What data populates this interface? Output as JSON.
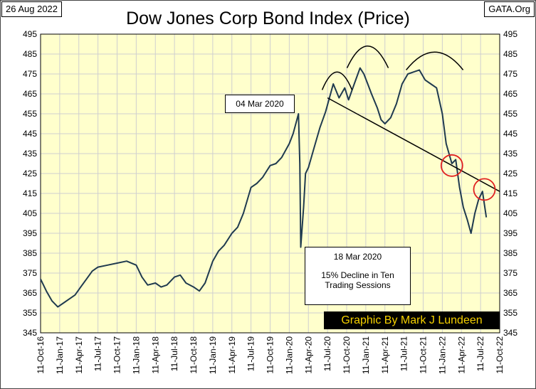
{
  "header": {
    "date": "26 Aug 2022",
    "site": "GATA.Org"
  },
  "annotations": {
    "peak_date": "04 Mar 2020",
    "crash_date": "18 Mar 2020",
    "crash_note_line1": "15% Decline in Ten",
    "crash_note_line2": "Trading Sessions",
    "credit": "Graphic By Mark J Lundeen"
  },
  "colors": {
    "plot_background": "#ffffcc",
    "series_line": "#1f3a4f",
    "trend_line": "#000000",
    "circles": "#e02020",
    "credit_background": "#000000",
    "credit_text": "#f5d000"
  },
  "chart_data": {
    "type": "line",
    "title": "Dow Jones Corp Bond Index (Price)",
    "xlabel": "",
    "ylabel": "",
    "ylim": [
      345,
      495
    ],
    "yticks": [
      345,
      355,
      365,
      375,
      385,
      395,
      405,
      415,
      425,
      435,
      445,
      455,
      465,
      475,
      485,
      495
    ],
    "xticks": [
      "11-Oct-16",
      "11-Jan-17",
      "11-Apr-17",
      "11-Jul-17",
      "11-Oct-17",
      "11-Jan-18",
      "11-Apr-18",
      "11-Jul-18",
      "11-Oct-18",
      "11-Jan-19",
      "11-Apr-19",
      "11-Jul-19",
      "11-Oct-19",
      "11-Jan-20",
      "11-Apr-20",
      "11-Jul-20",
      "11-Oct-20",
      "11-Jan-21",
      "11-Apr-21",
      "11-Jul-21",
      "11-Oct-21",
      "11-Jan-22",
      "11-Apr-22",
      "11-Jul-22",
      "11-Oct-22"
    ],
    "grid": true,
    "series": [
      {
        "values": [
          [
            0,
            372
          ],
          [
            0.3,
            366
          ],
          [
            0.6,
            361
          ],
          [
            0.9,
            358
          ],
          [
            1.2,
            360
          ],
          [
            1.5,
            362
          ],
          [
            1.8,
            364
          ],
          [
            2.1,
            368
          ],
          [
            2.4,
            372
          ],
          [
            2.7,
            376
          ],
          [
            3.0,
            378
          ],
          [
            3.5,
            379
          ],
          [
            4.0,
            380
          ],
          [
            4.5,
            381
          ],
          [
            5.0,
            379
          ],
          [
            5.3,
            373
          ],
          [
            5.6,
            369
          ],
          [
            6.0,
            370
          ],
          [
            6.3,
            368
          ],
          [
            6.6,
            369
          ],
          [
            7.0,
            373
          ],
          [
            7.3,
            374
          ],
          [
            7.6,
            370
          ],
          [
            8.0,
            368
          ],
          [
            8.3,
            366
          ],
          [
            8.6,
            370
          ],
          [
            9.0,
            381
          ],
          [
            9.3,
            386
          ],
          [
            9.6,
            389
          ],
          [
            10.0,
            395
          ],
          [
            10.3,
            398
          ],
          [
            10.6,
            405
          ],
          [
            11.0,
            418
          ],
          [
            11.3,
            420
          ],
          [
            11.6,
            423
          ],
          [
            12.0,
            429
          ],
          [
            12.3,
            430
          ],
          [
            12.6,
            433
          ],
          [
            13.0,
            440
          ],
          [
            13.2,
            445
          ],
          [
            13.4,
            452
          ],
          [
            13.48,
            455
          ],
          [
            13.55,
            430
          ],
          [
            13.6,
            388
          ],
          [
            13.75,
            408
          ],
          [
            13.85,
            425
          ],
          [
            14.0,
            428
          ],
          [
            14.3,
            438
          ],
          [
            14.6,
            448
          ],
          [
            14.9,
            456
          ],
          [
            15.1,
            463
          ],
          [
            15.3,
            470
          ],
          [
            15.6,
            463
          ],
          [
            15.9,
            468
          ],
          [
            16.1,
            462
          ],
          [
            16.4,
            470
          ],
          [
            16.7,
            478
          ],
          [
            16.9,
            475
          ],
          [
            17.1,
            470
          ],
          [
            17.3,
            465
          ],
          [
            17.6,
            458
          ],
          [
            17.8,
            452
          ],
          [
            18.0,
            450
          ],
          [
            18.3,
            453
          ],
          [
            18.6,
            460
          ],
          [
            18.9,
            470
          ],
          [
            19.2,
            475
          ],
          [
            19.5,
            476
          ],
          [
            19.8,
            477
          ],
          [
            20.1,
            472
          ],
          [
            20.4,
            470
          ],
          [
            20.7,
            468
          ],
          [
            21.0,
            455
          ],
          [
            21.2,
            440
          ],
          [
            21.5,
            430
          ],
          [
            21.7,
            432
          ],
          [
            21.9,
            418
          ],
          [
            22.1,
            408
          ],
          [
            22.3,
            402
          ],
          [
            22.5,
            395
          ],
          [
            22.7,
            405
          ],
          [
            22.9,
            412
          ],
          [
            23.1,
            416
          ],
          [
            23.3,
            403
          ]
        ]
      }
    ],
    "trend_line": [
      [
        15.0,
        463
      ],
      [
        24.0,
        416
      ]
    ],
    "arcs_at_x": [
      15.5,
      17.1,
      20.6
    ],
    "circles_at": [
      [
        21.5,
        429
      ],
      [
        23.2,
        417
      ]
    ]
  }
}
